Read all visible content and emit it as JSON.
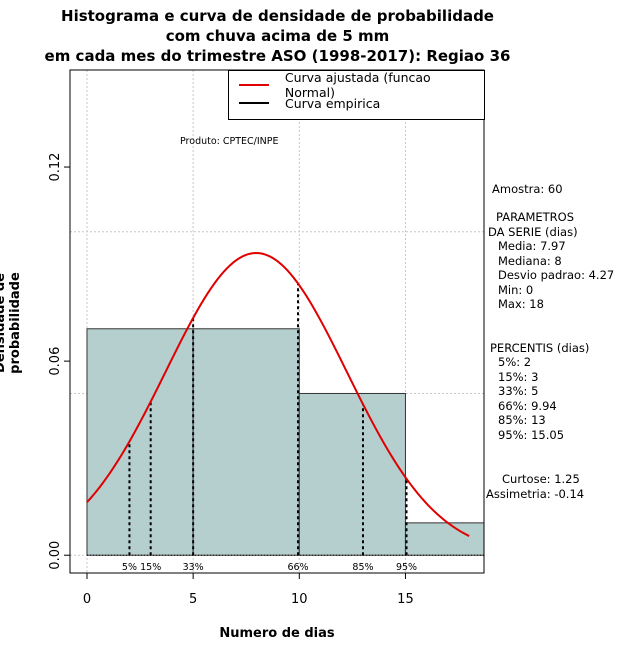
{
  "title_lines": [
    "Histograma e curva de densidade de probabilidade",
    "com chuva acima de 5 mm",
    "em cada mes do trimestre ASO (1998-2017): Regiao 36"
  ],
  "watermark": "Produto: CPTEC/INPE",
  "colors": {
    "bar_fill": "#b5cfce",
    "curve": "#e00000",
    "empirical": "#000000",
    "grid": "#c8c8c8"
  },
  "chart_data": {
    "type": "histogram",
    "xlabel": "Numero de dias",
    "ylabel": "Densidade de probabilidade",
    "xlim": [
      -0.8,
      18.7
    ],
    "ylim": [
      -0.0055,
      0.15
    ],
    "x_ticks": [
      0,
      5,
      10,
      15
    ],
    "x_tick_labels": [
      "0",
      "5",
      "10",
      "15"
    ],
    "y_ticks": [
      0.0,
      0.06,
      0.12
    ],
    "y_tick_labels": [
      "0.00",
      "0.06",
      "0.12"
    ],
    "grid_x": [
      0,
      5,
      10,
      15
    ],
    "grid_y": [
      0.0,
      0.05,
      0.1,
      0.15
    ],
    "bins": [
      {
        "start": 0,
        "end": 5,
        "density": 0.07
      },
      {
        "start": 5,
        "end": 10,
        "density": 0.07
      },
      {
        "start": 10,
        "end": 15,
        "density": 0.05
      },
      {
        "start": 15,
        "end": 18.7,
        "density": 0.01
      }
    ],
    "normal_curve": {
      "mean": 7.97,
      "sd": 4.27,
      "x_from": 0,
      "x_to": 18,
      "name": "Curva ajustada (funcao Normal)"
    },
    "empirical_name": "Curva empirica",
    "percentile_lines": [
      {
        "label": "5%",
        "x": 2
      },
      {
        "label": "15%",
        "x": 3
      },
      {
        "label": "33%",
        "x": 5
      },
      {
        "label": "66%",
        "x": 9.94
      },
      {
        "label": "85%",
        "x": 13
      },
      {
        "label": "95%",
        "x": 15.05
      }
    ]
  },
  "stats": {
    "amostra": "Amostra: 60",
    "params_header_1": "PARAMETROS",
    "params_header_2": "DA SERIE (dias)",
    "media": "Media: 7.97",
    "mediana": "Mediana: 8",
    "desvio": "Desvio padrao: 4.27",
    "min": "Min: 0",
    "max": "Max: 18",
    "percentis_header": "PERCENTIS (dias)",
    "p5": "5%: 2",
    "p15": "15%: 3",
    "p33": "33%: 5",
    "p66": "66%: 9.94",
    "p85": "85%: 13",
    "p95": "95%: 15.05",
    "curtose": "Curtose: 1.25",
    "assimetria": "Assimetria: -0.14"
  }
}
